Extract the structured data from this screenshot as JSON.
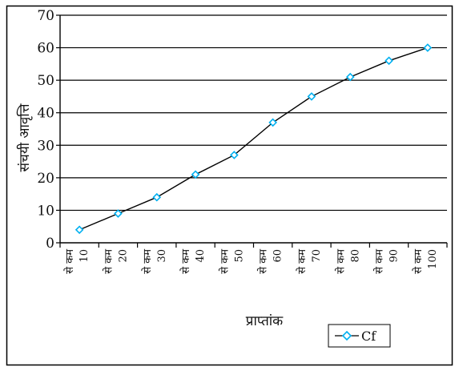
{
  "chart_data": {
    "type": "line",
    "title": "",
    "xlabel": "प्राप्तांक",
    "ylabel": "संचयी आवृत्ति",
    "categories": [
      "10 से कम",
      "20 से कम",
      "30 से कम",
      "40 से कम",
      "50 से कम",
      "60 से कम",
      "70 से कम",
      "80 से कम",
      "90 से कम",
      "100 से कम"
    ],
    "category_parts": [
      [
        "से कम",
        "10"
      ],
      [
        "से कम",
        "20"
      ],
      [
        "से कम",
        "30"
      ],
      [
        "से कम",
        "40"
      ],
      [
        "से कम",
        "50"
      ],
      [
        "से कम",
        "60"
      ],
      [
        "से कम",
        "70"
      ],
      [
        "से कम",
        "80"
      ],
      [
        "से कम",
        "90"
      ],
      [
        "से कम",
        "100"
      ]
    ],
    "ylim": [
      0,
      70
    ],
    "yticks": [
      0,
      10,
      20,
      30,
      40,
      50,
      60,
      70
    ],
    "grid": true,
    "legend_position": "bottom-right",
    "series": [
      {
        "name": "Cf",
        "color": "#00b0f0",
        "line_color": "#000000",
        "marker": "diamond",
        "values": [
          4,
          9,
          14,
          21,
          27,
          37,
          45,
          51,
          56,
          60
        ]
      }
    ]
  }
}
